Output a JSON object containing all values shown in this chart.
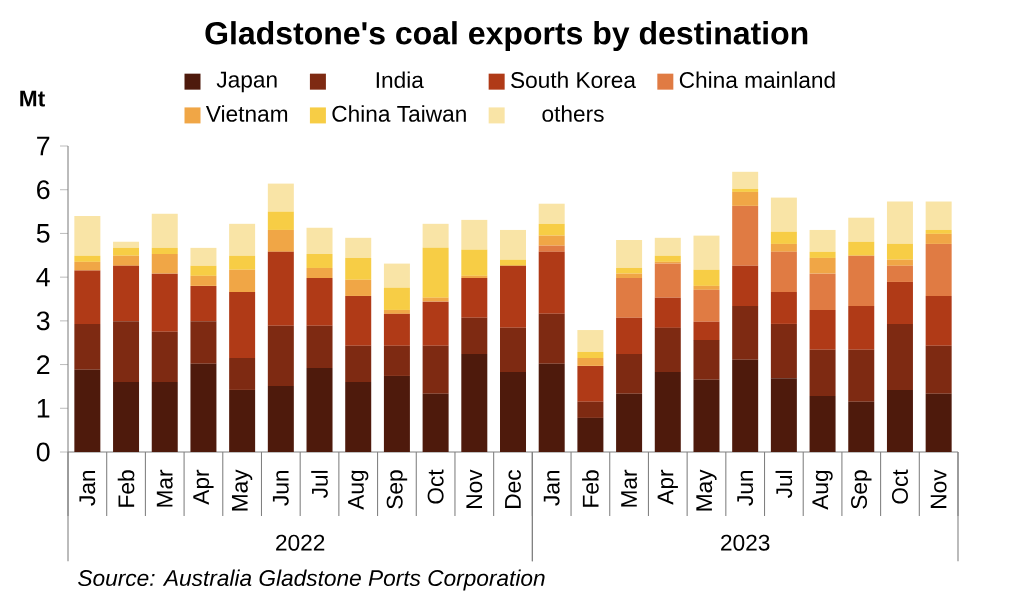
{
  "chart_data": {
    "type": "bar",
    "stacked": true,
    "title": "Gladstone's coal exports by destination",
    "ylabel": "Mt",
    "categories": [
      "Jan",
      "Feb",
      "Mar",
      "Apr",
      "May",
      "Jun",
      "Jul",
      "Aug",
      "Sep",
      "Oct",
      "Nov",
      "Dec",
      "Jan",
      "Feb",
      "Mar",
      "Apr",
      "May",
      "Jun",
      "Jul",
      "Aug",
      "Sep",
      "Oct",
      "Nov"
    ],
    "series": [
      {
        "name": "Japan",
        "color": "#4e1a0c",
        "values": [
          1.88,
          1.6,
          1.6,
          2.02,
          1.42,
          1.51,
          1.92,
          1.6,
          1.74,
          1.33,
          2.24,
          1.83,
          2.02,
          0.78,
          1.33,
          1.83,
          1.65,
          2.11,
          1.69,
          1.28,
          1.15,
          1.42,
          1.33
        ]
      },
      {
        "name": "India",
        "color": "#7e2a12",
        "values": [
          1.05,
          1.39,
          1.15,
          0.97,
          0.73,
          1.38,
          0.97,
          0.83,
          0.69,
          1.1,
          0.83,
          1.01,
          1.14,
          0.37,
          0.91,
          1.01,
          0.91,
          1.23,
          1.24,
          1.06,
          1.19,
          1.51,
          1.1
        ]
      },
      {
        "name": "South Korea",
        "color": "#b03a17",
        "values": [
          1.22,
          1.27,
          1.33,
          0.81,
          1.51,
          1.69,
          1.09,
          1.14,
          0.73,
          1.01,
          0.91,
          1.42,
          1.42,
          0.82,
          0.83,
          0.69,
          0.42,
          0.92,
          0.73,
          0.91,
          1.0,
          0.96,
          1.14
        ]
      },
      {
        "name": "China mainland",
        "color": "#e07b43",
        "values": [
          0,
          0,
          0,
          0,
          0,
          0,
          0,
          0,
          0,
          0,
          0,
          0,
          0.14,
          0,
          0.91,
          0.78,
          0.73,
          1.37,
          0.92,
          0.83,
          1.15,
          0.37,
          1.19
        ]
      },
      {
        "name": "Vietnam",
        "color": "#f0a646",
        "values": [
          0.2,
          0.23,
          0.45,
          0.23,
          0.51,
          0.5,
          0.23,
          0.37,
          0.09,
          0.09,
          0.05,
          0,
          0.23,
          0.18,
          0.1,
          0.04,
          0.09,
          0.32,
          0.18,
          0.36,
          0,
          0.14,
          0.23
        ]
      },
      {
        "name": "China Taiwan",
        "color": "#f7cd45",
        "values": [
          0.14,
          0.18,
          0.14,
          0.23,
          0.32,
          0.42,
          0.32,
          0.5,
          0.51,
          1.14,
          0.6,
          0.14,
          0.27,
          0.14,
          0.13,
          0.14,
          0.37,
          0.07,
          0.28,
          0.14,
          0.32,
          0.36,
          0.09
        ]
      },
      {
        "name": "others",
        "color": "#f9e4a6",
        "values": [
          0.91,
          0.14,
          0.78,
          0.41,
          0.73,
          0.64,
          0.6,
          0.46,
          0.55,
          0.55,
          0.68,
          0.68,
          0.46,
          0.5,
          0.64,
          0.41,
          0.78,
          0.39,
          0.78,
          0.5,
          0.55,
          0.97,
          0.65
        ]
      }
    ],
    "ylim": [
      0,
      7
    ],
    "yticks": [
      0,
      1,
      2,
      3,
      4,
      5,
      6,
      7
    ],
    "legend": "top",
    "annotations": [
      "2022",
      "2023",
      "Source: Australia Gladstone Ports Corporation"
    ]
  }
}
